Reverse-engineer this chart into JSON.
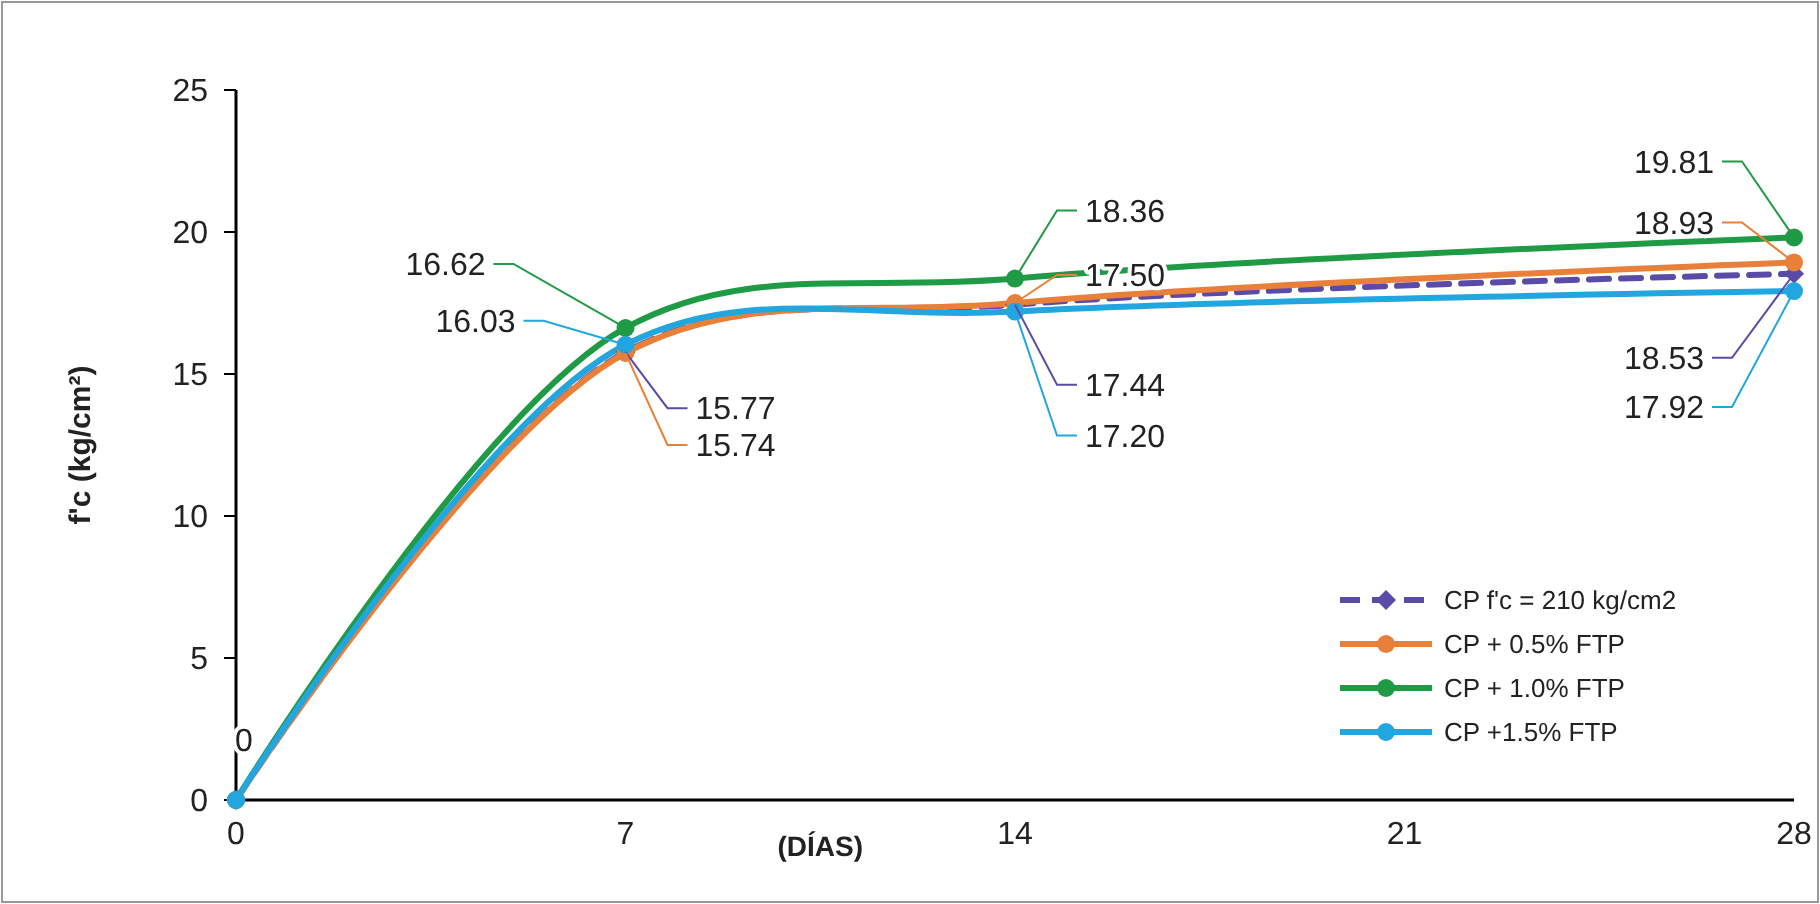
{
  "chart_data": {
    "type": "line",
    "xlabel": "(DÍAS)",
    "ylabel": "f'c (kg/cm²)",
    "x": [
      0,
      7,
      14,
      28
    ],
    "xlim": [
      0,
      28
    ],
    "xticks": [
      0,
      7,
      14,
      21,
      28
    ],
    "ylim": [
      0,
      25
    ],
    "yticks": [
      0,
      5,
      10,
      15,
      20,
      25
    ],
    "grid": false,
    "legend": "bottom right",
    "series": [
      {
        "name": "CP f'c = 210 kg/cm2",
        "color": "#5b4ba8",
        "values": [
          0,
          15.77,
          17.44,
          18.53
        ],
        "value_labels": [
          "0",
          "15.77",
          "17.44",
          "18.53"
        ],
        "marker": "diamond",
        "line_style": "dashed"
      },
      {
        "name": "CP + 0.5% FTP",
        "color": "#e8803a",
        "values": [
          0,
          15.74,
          17.5,
          18.93
        ],
        "value_labels": [
          null,
          "15.74",
          "17.50",
          "18.93"
        ],
        "marker": "circle",
        "line_style": "solid"
      },
      {
        "name": "CP + 1.0% FTP",
        "color": "#1f9a45",
        "values": [
          0,
          16.62,
          18.36,
          19.81
        ],
        "value_labels": [
          null,
          "16.62",
          "18.36",
          "19.81"
        ],
        "marker": "circle",
        "line_style": "solid"
      },
      {
        "name": "CP +1.5% FTP",
        "color": "#22a6e0",
        "values": [
          0,
          16.03,
          17.2,
          17.92
        ],
        "value_labels": [
          null,
          "16.03",
          "17.20",
          "17.92"
        ],
        "marker": "circle",
        "line_style": "solid"
      }
    ]
  }
}
